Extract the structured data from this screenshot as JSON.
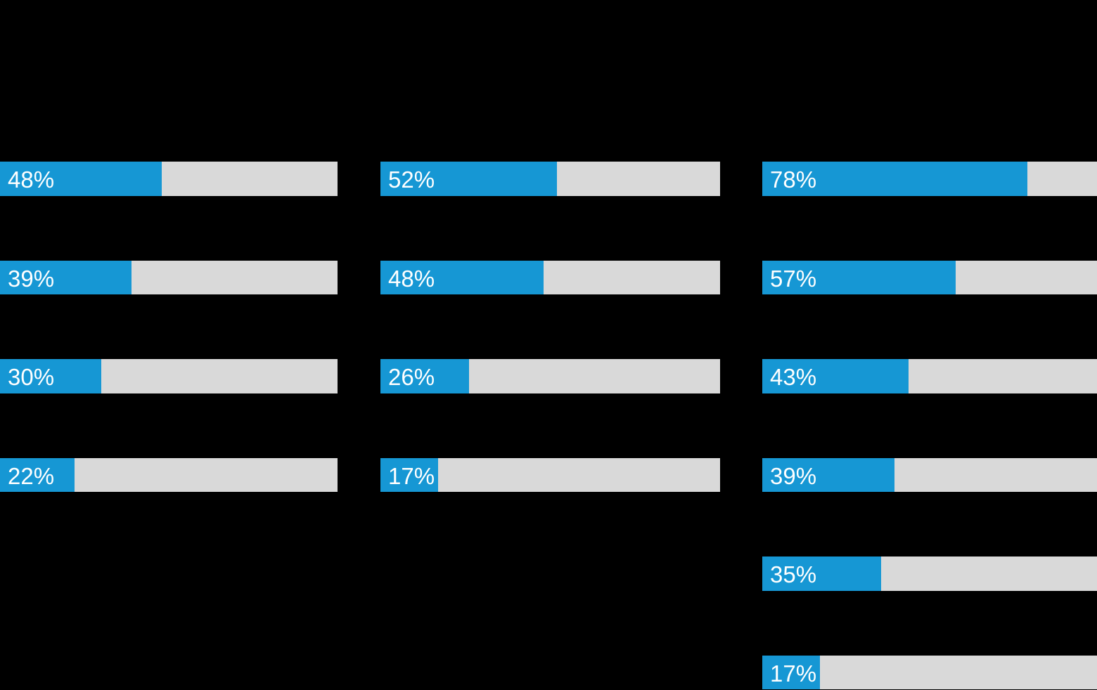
{
  "background_color": "#000000",
  "chart_data": {
    "type": "bar",
    "orientation": "horizontal",
    "value_format": "percent",
    "axis_range": [
      0,
      100
    ],
    "bar_fill_color": "#1697d4",
    "bar_track_color": "#d9d9d9",
    "label_color": "#ffffff",
    "legend": "none",
    "grid": false,
    "groups": [
      {
        "values": [
          48,
          39,
          30,
          22
        ],
        "labels": [
          "48%",
          "39%",
          "30%",
          "22%"
        ]
      },
      {
        "values": [
          52,
          48,
          26,
          17
        ],
        "labels": [
          "52%",
          "48%",
          "26%",
          "17%"
        ]
      },
      {
        "values": [
          78,
          57,
          43,
          39,
          35,
          17
        ],
        "labels": [
          "78%",
          "57%",
          "43%",
          "39%",
          "35%",
          "17%"
        ]
      }
    ]
  }
}
